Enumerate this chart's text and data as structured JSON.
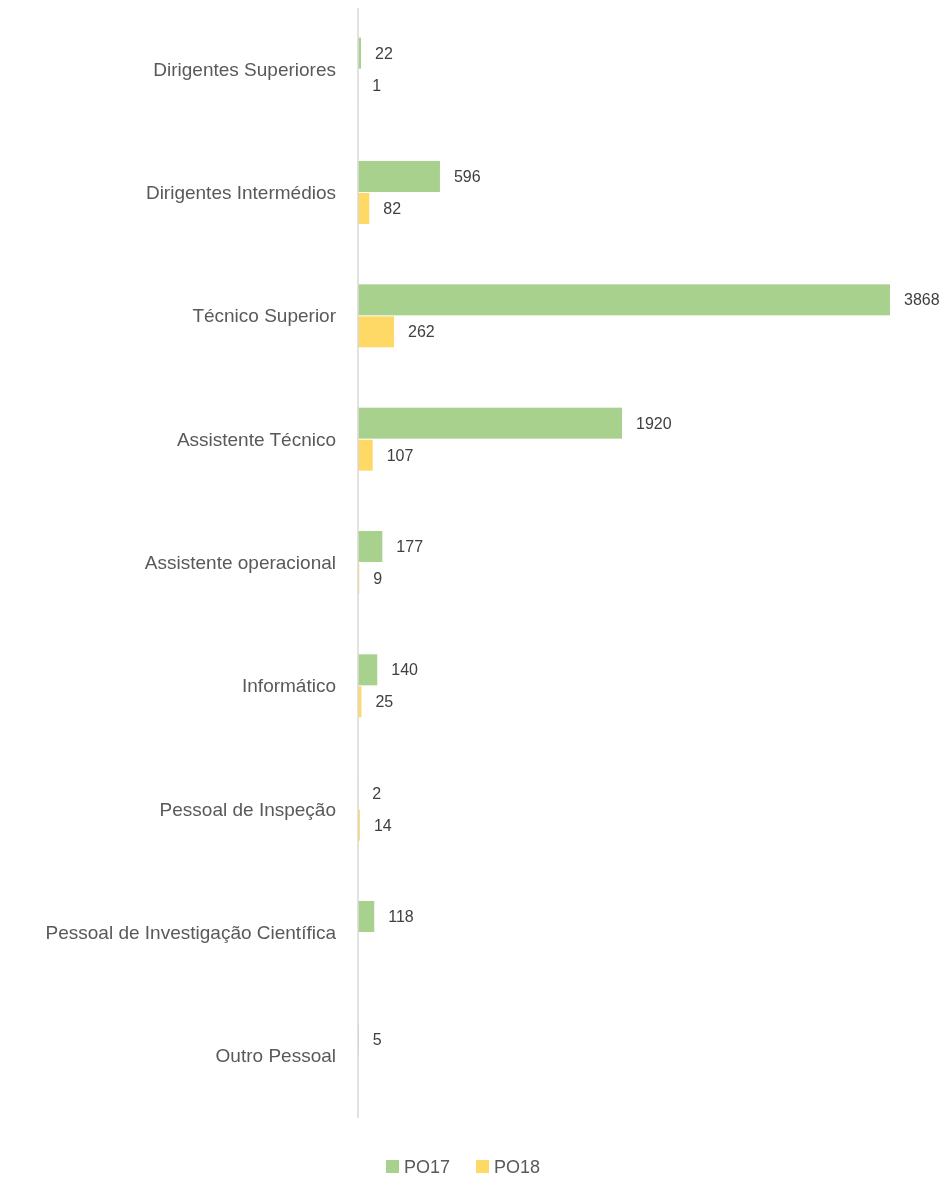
{
  "chart_data": {
    "type": "bar",
    "orientation": "horizontal",
    "categories": [
      "Dirigentes Superiores",
      "Dirigentes Intermédios",
      "Técnico Superior",
      "Assistente Técnico",
      "Assistente operacional",
      "Informático",
      "Pessoal de Inspeção",
      "Pessoal de Investigação Científica",
      "Outro Pessoal"
    ],
    "series": [
      {
        "name": "PO17",
        "color": "#a9d18e",
        "values": [
          22,
          596,
          3868,
          1920,
          177,
          140,
          2,
          118,
          5
        ]
      },
      {
        "name": "PO18",
        "color": "#ffd966",
        "values": [
          1,
          82,
          262,
          107,
          9,
          25,
          14,
          null,
          null
        ]
      }
    ],
    "data_labels": true,
    "legend": "bottom"
  }
}
